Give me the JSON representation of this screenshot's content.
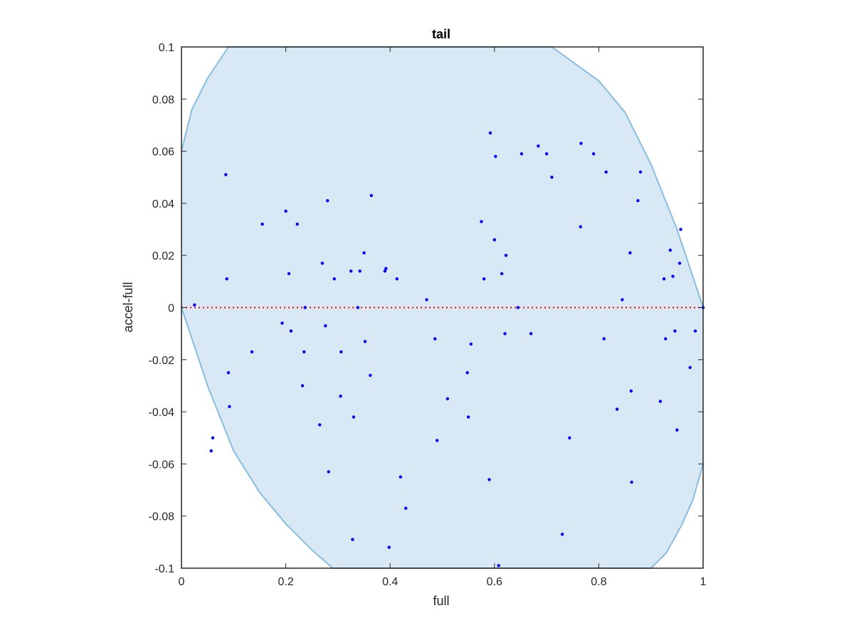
{
  "chart_data": {
    "type": "scatter",
    "title": "tail",
    "xlabel": "full",
    "ylabel": "accel-full",
    "xlim": [
      0,
      1
    ],
    "ylim": [
      -0.1,
      0.1
    ],
    "xticks": [
      0,
      0.2,
      0.4,
      0.6,
      0.8,
      1
    ],
    "yticks": [
      -0.1,
      -0.08,
      -0.06,
      -0.04,
      -0.02,
      0,
      0.02,
      0.04,
      0.06,
      0.08,
      0.1
    ],
    "xtick_labels": [
      "0",
      "0.2",
      "0.4",
      "0.6",
      "0.8",
      "1"
    ],
    "ytick_labels": [
      "-0.1",
      "-0.08",
      "-0.06",
      "-0.04",
      "-0.02",
      "0",
      "0.02",
      "0.04",
      "0.06",
      "0.08",
      "0.1"
    ],
    "grid": false,
    "colors": {
      "points": "#0000ff",
      "region_fill": "#d9e8f5",
      "region_edge": "#87bde0",
      "zero_line": "#ff0000",
      "axes": "#262626"
    },
    "region": {
      "upper": [
        [
          0,
          0.06
        ],
        [
          0.02,
          0.076
        ],
        [
          0.05,
          0.088
        ],
        [
          0.09,
          0.1
        ],
        [
          0.71,
          0.1
        ],
        [
          0.8,
          0.087
        ],
        [
          0.85,
          0.075
        ],
        [
          0.9,
          0.055
        ],
        [
          0.95,
          0.03
        ],
        [
          0.98,
          0.012
        ],
        [
          1,
          0
        ]
      ],
      "lower": [
        [
          0,
          0
        ],
        [
          0.02,
          -0.012
        ],
        [
          0.05,
          -0.03
        ],
        [
          0.1,
          -0.055
        ],
        [
          0.15,
          -0.071
        ],
        [
          0.2,
          -0.083
        ],
        [
          0.25,
          -0.093
        ],
        [
          0.29,
          -0.1
        ],
        [
          0.9,
          -0.1
        ],
        [
          0.93,
          -0.094
        ],
        [
          0.96,
          -0.083
        ],
        [
          0.98,
          -0.074
        ],
        [
          1,
          -0.06
        ]
      ]
    },
    "series": [
      {
        "x": [
          0.025,
          0.057,
          0.06,
          0.085,
          0.087,
          0.09,
          0.092,
          0.135,
          0.155,
          0.193,
          0.2,
          0.206,
          0.21,
          0.222,
          0.232,
          0.235,
          0.237,
          0.265,
          0.27,
          0.276,
          0.28,
          0.282,
          0.293,
          0.305,
          0.306,
          0.325,
          0.328,
          0.33,
          0.338,
          0.342,
          0.35,
          0.352,
          0.362,
          0.364,
          0.39,
          0.392,
          0.398,
          0.413,
          0.42,
          0.43,
          0.47,
          0.486,
          0.49,
          0.51,
          0.548,
          0.55,
          0.555,
          0.575,
          0.58,
          0.59,
          0.592,
          0.6,
          0.602,
          0.608,
          0.614,
          0.62,
          0.622,
          0.645,
          0.652,
          0.67,
          0.684,
          0.7,
          0.71,
          0.73,
          0.744,
          0.765,
          0.766,
          0.79,
          0.81,
          0.814,
          0.835,
          0.845,
          0.86,
          0.862,
          0.863,
          0.875,
          0.88,
          0.918,
          0.925,
          0.928,
          0.937,
          0.942,
          0.946,
          0.95,
          0.955,
          0.957,
          0.975,
          0.985,
          1.0
        ],
        "y": [
          0.001,
          -0.055,
          -0.05,
          0.051,
          0.011,
          -0.025,
          -0.038,
          -0.017,
          0.032,
          -0.006,
          0.037,
          0.013,
          -0.009,
          0.032,
          -0.03,
          -0.017,
          0.0,
          -0.045,
          0.017,
          -0.007,
          0.041,
          -0.063,
          0.011,
          -0.034,
          -0.017,
          0.014,
          -0.089,
          -0.042,
          0.0,
          0.014,
          0.021,
          -0.013,
          -0.026,
          0.043,
          0.014,
          0.015,
          -0.092,
          0.011,
          -0.065,
          -0.077,
          0.003,
          -0.012,
          -0.051,
          -0.035,
          -0.025,
          -0.042,
          -0.014,
          0.033,
          0.011,
          -0.066,
          0.067,
          0.026,
          0.058,
          -0.099,
          0.013,
          -0.01,
          0.02,
          0.0,
          0.059,
          -0.01,
          0.062,
          0.059,
          0.05,
          -0.087,
          -0.05,
          0.031,
          0.063,
          0.059,
          -0.012,
          0.052,
          -0.039,
          0.003,
          0.021,
          -0.032,
          -0.067,
          0.041,
          0.052,
          -0.036,
          0.011,
          -0.012,
          0.022,
          0.012,
          -0.009,
          -0.047,
          0.017,
          0.03,
          -0.023,
          -0.009,
          0.0
        ]
      }
    ]
  }
}
